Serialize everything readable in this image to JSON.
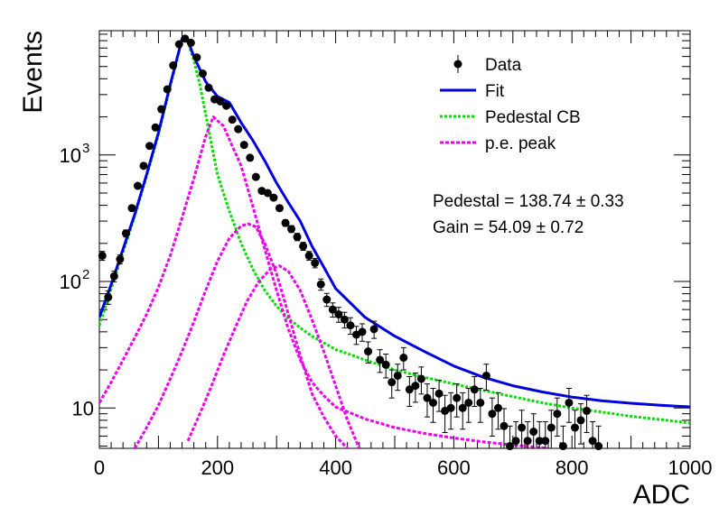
{
  "chart_data": {
    "type": "scatter",
    "xlabel": "ADC",
    "ylabel": "Events",
    "xlim": [
      0,
      1000
    ],
    "ylim": [
      4.8,
      9600
    ],
    "yscale": "log",
    "x_ticks": [
      {
        "value": 0,
        "label": "0"
      },
      {
        "value": 200,
        "label": "200"
      },
      {
        "value": 400,
        "label": "400"
      },
      {
        "value": 600,
        "label": "600"
      },
      {
        "value": 800,
        "label": "800"
      },
      {
        "value": 1000,
        "label": "1000"
      }
    ],
    "y_ticks": [
      {
        "value": 10,
        "base": "10",
        "exp": ""
      },
      {
        "value": 100,
        "base": "10",
        "exp": "2"
      },
      {
        "value": 1000,
        "base": "10",
        "exp": "3"
      }
    ],
    "legend": {
      "position": "top-right",
      "entries": [
        {
          "label": "Data",
          "style": "marker",
          "color": "#000000"
        },
        {
          "label": "Fit",
          "style": "solid",
          "color": "#0000dd"
        },
        {
          "label": "Pedestal CB",
          "style": "dotted",
          "color": "#00dd00"
        },
        {
          "label": "p.e. peak",
          "style": "dashed",
          "color": "#ee00ee"
        }
      ]
    },
    "annotations": [
      {
        "text": "Pedestal = 138.74 ± 0.33"
      },
      {
        "text": "Gain = 54.09 ± 0.72"
      }
    ],
    "series": [
      {
        "name": "Data",
        "kind": "points",
        "color": "#000000",
        "x": [
          5,
          15,
          25,
          35,
          45,
          55,
          65,
          75,
          85,
          95,
          105,
          115,
          125,
          135,
          145,
          155,
          165,
          175,
          185,
          195,
          205,
          215,
          225,
          235,
          245,
          255,
          265,
          275,
          285,
          295,
          305,
          315,
          325,
          335,
          345,
          355,
          365,
          375,
          385,
          395,
          405,
          415,
          425,
          435,
          445,
          455,
          465,
          475,
          485,
          495,
          505,
          515,
          525,
          535,
          545,
          555,
          565,
          575,
          585,
          595,
          605,
          615,
          625,
          635,
          645,
          655,
          665,
          675,
          685,
          695,
          705,
          715,
          725,
          735,
          745,
          755,
          765,
          775,
          785,
          795,
          805,
          815,
          825,
          835,
          845
        ],
        "y": [
          160,
          75,
          110,
          150,
          240,
          380,
          570,
          820,
          1180,
          1650,
          2300,
          3300,
          5100,
          7500,
          8300,
          7700,
          5900,
          4400,
          3400,
          2750,
          2650,
          2450,
          1900,
          1600,
          1200,
          950,
          670,
          520,
          500,
          460,
          380,
          290,
          260,
          225,
          190,
          160,
          140,
          95,
          72,
          60,
          55,
          50,
          45,
          38,
          40,
          28,
          42,
          24,
          22,
          16,
          18,
          25,
          14,
          15,
          17,
          12,
          11,
          13,
          9.5,
          10,
          12,
          10,
          11,
          14,
          11,
          18,
          9,
          10,
          7.2,
          5,
          5.5,
          7,
          5.5,
          6.5,
          5.5,
          5.5,
          7,
          9,
          5,
          11,
          7,
          8,
          9.5,
          5.5,
          5
        ],
        "err": [
          13,
          9,
          10.5,
          12,
          15.5,
          19.5,
          24,
          28.6,
          34,
          40.6,
          48,
          57.4,
          71.4,
          86.6,
          91.1,
          87.7,
          76.8,
          66.3,
          58.3,
          52.4,
          51.5,
          49.5,
          43.6,
          40,
          34.6,
          30.8,
          25.9,
          22.8,
          22.4,
          21.4,
          19.5,
          17,
          16.1,
          15,
          13.8,
          12.6,
          11.8,
          9.7,
          8.5,
          7.7,
          7.4,
          7.1,
          6.7,
          6.2,
          6.3,
          5.3,
          6.5,
          4.9,
          4.7,
          4,
          4.2,
          5,
          3.7,
          3.9,
          4.1,
          3.5,
          3.3,
          3.6,
          3.1,
          3.2,
          3.5,
          3.2,
          3.3,
          3.7,
          3.3,
          4.2,
          3,
          3.2,
          2.7,
          2.2,
          2.3,
          2.6,
          2.3,
          2.5,
          2.3,
          2.3,
          2.6,
          3,
          2.2,
          3.3,
          2.6,
          2.8,
          3.1,
          2.3,
          2.2
        ]
      },
      {
        "name": "Fit",
        "kind": "line",
        "style": "solid",
        "color": "#0000dd",
        "x": [
          0,
          20,
          40,
          60,
          80,
          100,
          120,
          140,
          150,
          160,
          180,
          200,
          220,
          240,
          260,
          280,
          300,
          320,
          340,
          360,
          380,
          400,
          450,
          500,
          550,
          600,
          650,
          700,
          750,
          800,
          850,
          900,
          950,
          1000
        ],
        "y": [
          52,
          95,
          180,
          340,
          700,
          1500,
          3600,
          8300,
          8000,
          6000,
          3800,
          2900,
          2600,
          1800,
          1300,
          900,
          600,
          420,
          300,
          190,
          130,
          88,
          52,
          37,
          28,
          21.5,
          17.5,
          15,
          13.4,
          12.2,
          11.4,
          10.9,
          10.5,
          10.2
        ]
      },
      {
        "name": "Pedestal CB",
        "kind": "line",
        "style": "dotted",
        "color": "#00dd00",
        "x": [
          0,
          20,
          40,
          60,
          80,
          100,
          120,
          140,
          150,
          160,
          170,
          180,
          190,
          200,
          220,
          240,
          260,
          280,
          300,
          320,
          340,
          360,
          400,
          450,
          500,
          550,
          600,
          650,
          700,
          750,
          800,
          850,
          900,
          950,
          1000
        ],
        "y": [
          45,
          88,
          170,
          330,
          680,
          1450,
          3500,
          8200,
          7800,
          5600,
          3600,
          2100,
          1200,
          700,
          360,
          200,
          125,
          85,
          64,
          51,
          43,
          37,
          29,
          24,
          20,
          17.5,
          15.5,
          13.8,
          12.3,
          11,
          10,
          9.3,
          8.6,
          8.1,
          7.6
        ]
      },
      {
        "name": "p.e. peak",
        "kind": "line",
        "style": "dashed",
        "color": "#ee00ee",
        "x": [
          0,
          20,
          40,
          60,
          80,
          100,
          120,
          140,
          160,
          180,
          193,
          210,
          240,
          260,
          280,
          300,
          320,
          340,
          360,
          380,
          400,
          450,
          500,
          550,
          600,
          650,
          700,
          760
        ],
        "y": [
          11,
          16,
          24,
          36,
          55,
          90,
          160,
          320,
          650,
          1400,
          2000,
          1700,
          820,
          390,
          180,
          85,
          42,
          24,
          16,
          12.5,
          10.2,
          8.2,
          7,
          6.3,
          5.8,
          5.4,
          5.1,
          4.8
        ]
      },
      {
        "name": "p.e. peak",
        "kind": "line",
        "style": "dashed",
        "color": "#ee00ee",
        "x": [
          60,
          80,
          100,
          120,
          140,
          160,
          180,
          200,
          220,
          240,
          252,
          265,
          280,
          300,
          320,
          340,
          360,
          380,
          400,
          420
        ],
        "y": [
          4.8,
          7,
          10.5,
          17,
          28,
          48,
          85,
          145,
          220,
          275,
          285,
          270,
          200,
          115,
          55,
          26,
          13,
          8.5,
          6,
          4.8
        ]
      },
      {
        "name": "p.e. peak",
        "kind": "line",
        "style": "dashed",
        "color": "#ee00ee",
        "x": [
          150,
          170,
          190,
          210,
          230,
          250,
          270,
          290,
          305,
          320,
          340,
          360,
          380,
          400,
          420,
          440
        ],
        "y": [
          5.5,
          9,
          15,
          26,
          43,
          70,
          100,
          126,
          133,
          120,
          85,
          50,
          28,
          15,
          8,
          4.8
        ]
      }
    ]
  }
}
